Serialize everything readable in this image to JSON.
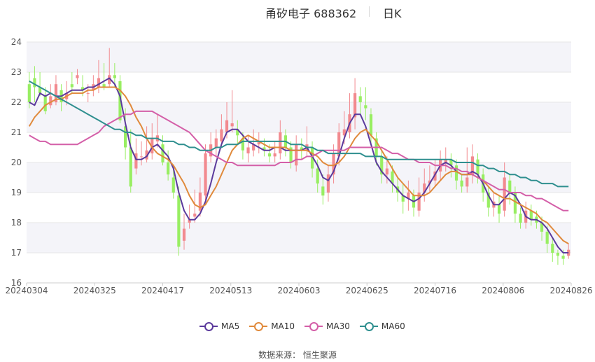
{
  "header": {
    "stock_name": "甬矽电子 688362",
    "period": "日K"
  },
  "chart_data": {
    "type": "candlestick",
    "y_axis": {
      "min": 16,
      "max": 24,
      "ticks": [
        16,
        17,
        18,
        19,
        20,
        21,
        22,
        23,
        24
      ],
      "grid": true
    },
    "x_axis": {
      "tick_labels": [
        "20240304",
        "20240325",
        "20240417",
        "20240513",
        "20240603",
        "20240625",
        "20240716",
        "20240806",
        "20240826"
      ]
    },
    "colors": {
      "up": "#f28a8f",
      "down": "#98ee62",
      "MA5": "#5b3a9c",
      "MA10": "#e08a3c",
      "MA30": "#d45fa8",
      "MA60": "#2f8f8f",
      "band": "#f4f4f9",
      "grid": "#e6e6e6"
    },
    "candles": [
      [
        22.6,
        22.0,
        23.0,
        21.8
      ],
      [
        22.8,
        22.5,
        23.2,
        22.0
      ],
      [
        22.5,
        22.3,
        23.0,
        22.2
      ],
      [
        22.2,
        21.7,
        22.5,
        21.6
      ],
      [
        21.9,
        22.2,
        22.6,
        21.8
      ],
      [
        22.0,
        22.6,
        22.9,
        21.9
      ],
      [
        22.4,
        22.0,
        22.6,
        21.7
      ],
      [
        22.1,
        22.3,
        22.7,
        21.9
      ],
      [
        22.6,
        22.5,
        23.0,
        22.3
      ],
      [
        22.8,
        22.9,
        23.1,
        22.6
      ],
      [
        22.5,
        22.4,
        22.9,
        22.2
      ],
      [
        22.3,
        22.3,
        22.6,
        22.0
      ],
      [
        22.4,
        22.6,
        22.9,
        22.2
      ],
      [
        22.5,
        22.8,
        23.4,
        22.3
      ],
      [
        22.6,
        22.5,
        23.3,
        22.4
      ],
      [
        22.6,
        22.9,
        23.8,
        22.5
      ],
      [
        22.9,
        22.8,
        23.3,
        22.5
      ],
      [
        22.7,
        21.4,
        22.9,
        21.3
      ],
      [
        21.2,
        20.5,
        21.8,
        20.1
      ],
      [
        20.5,
        19.2,
        21.1,
        19.0
      ],
      [
        19.8,
        20.3,
        20.8,
        19.6
      ],
      [
        20.2,
        20.2,
        20.7,
        19.9
      ],
      [
        20.1,
        20.4,
        21.2,
        20.0
      ],
      [
        20.3,
        20.8,
        21.3,
        20.1
      ],
      [
        20.7,
        20.9,
        21.6,
        20.5
      ],
      [
        20.6,
        20.0,
        20.9,
        19.9
      ],
      [
        20.0,
        19.6,
        20.4,
        19.4
      ],
      [
        19.5,
        19.0,
        19.8,
        18.8
      ],
      [
        18.9,
        17.2,
        19.2,
        16.9
      ],
      [
        17.4,
        17.8,
        18.3,
        17.1
      ],
      [
        18.0,
        18.1,
        18.6,
        17.8
      ],
      [
        18.2,
        18.3,
        19.1,
        18.0
      ],
      [
        18.4,
        19.0,
        19.5,
        18.2
      ],
      [
        18.9,
        20.3,
        20.6,
        18.7
      ],
      [
        20.2,
        20.6,
        21.0,
        20.0
      ],
      [
        20.5,
        20.8,
        21.1,
        20.2
      ],
      [
        20.7,
        21.1,
        21.6,
        20.5
      ],
      [
        21.0,
        21.4,
        22.0,
        20.8
      ],
      [
        21.2,
        21.3,
        22.4,
        21.0
      ],
      [
        21.1,
        20.9,
        21.4,
        20.6
      ],
      [
        20.8,
        20.4,
        21.0,
        20.1
      ],
      [
        20.3,
        20.5,
        20.9,
        20.0
      ],
      [
        20.4,
        20.6,
        21.1,
        20.2
      ],
      [
        20.6,
        20.7,
        21.0,
        20.3
      ],
      [
        20.5,
        20.4,
        20.8,
        20.2
      ],
      [
        20.3,
        20.2,
        20.6,
        20.0
      ],
      [
        20.2,
        20.3,
        20.7,
        20.0
      ],
      [
        20.3,
        21.0,
        21.4,
        20.1
      ],
      [
        20.9,
        20.5,
        21.1,
        20.2
      ],
      [
        20.5,
        20.0,
        20.7,
        19.8
      ],
      [
        19.9,
        20.6,
        20.9,
        19.7
      ],
      [
        20.5,
        20.4,
        20.8,
        20.1
      ],
      [
        20.4,
        20.6,
        21.2,
        20.2
      ],
      [
        20.5,
        19.8,
        20.7,
        19.5
      ],
      [
        19.8,
        19.3,
        20.1,
        19.0
      ],
      [
        19.2,
        18.9,
        19.6,
        18.6
      ],
      [
        19.0,
        19.6,
        19.9,
        18.7
      ],
      [
        19.6,
        20.3,
        20.6,
        19.3
      ],
      [
        20.2,
        21.0,
        21.3,
        19.9
      ],
      [
        20.9,
        21.1,
        21.7,
        20.6
      ],
      [
        21.0,
        21.6,
        22.3,
        20.8
      ],
      [
        21.5,
        22.3,
        22.8,
        21.1
      ],
      [
        22.2,
        22.0,
        22.5,
        21.6
      ],
      [
        21.9,
        21.8,
        22.5,
        21.4
      ],
      [
        21.6,
        20.9,
        21.8,
        20.6
      ],
      [
        20.8,
        20.2,
        21.0,
        19.9
      ],
      [
        20.2,
        19.6,
        20.4,
        19.3
      ],
      [
        19.6,
        19.8,
        20.2,
        19.3
      ],
      [
        19.7,
        19.3,
        19.9,
        19.0
      ],
      [
        19.2,
        19.0,
        19.5,
        18.7
      ],
      [
        18.9,
        18.7,
        19.3,
        18.3
      ],
      [
        18.8,
        19.0,
        19.4,
        18.4
      ],
      [
        18.9,
        18.5,
        19.1,
        18.2
      ],
      [
        18.4,
        19.0,
        19.5,
        18.2
      ],
      [
        19.0,
        19.3,
        19.8,
        18.7
      ],
      [
        19.3,
        19.4,
        19.9,
        19.0
      ],
      [
        19.4,
        19.7,
        20.1,
        19.2
      ],
      [
        19.7,
        20.1,
        20.4,
        19.4
      ],
      [
        20.0,
        20.1,
        20.5,
        19.7
      ],
      [
        20.1,
        19.9,
        20.3,
        19.5
      ],
      [
        19.9,
        19.4,
        20.1,
        19.1
      ],
      [
        19.4,
        19.2,
        19.6,
        19.0
      ],
      [
        19.2,
        19.5,
        20.5,
        19.0
      ],
      [
        19.6,
        20.2,
        20.6,
        19.3
      ],
      [
        20.1,
        19.6,
        20.3,
        19.3
      ],
      [
        19.6,
        19.0,
        19.8,
        18.7
      ],
      [
        19.0,
        18.5,
        19.2,
        18.2
      ],
      [
        18.5,
        18.7,
        19.0,
        18.2
      ],
      [
        18.6,
        18.3,
        18.9,
        18.0
      ],
      [
        18.4,
        19.5,
        20.0,
        18.2
      ],
      [
        19.4,
        19.0,
        19.6,
        18.6
      ],
      [
        19.0,
        18.3,
        19.2,
        18.0
      ],
      [
        18.3,
        18.0,
        18.5,
        17.8
      ],
      [
        18.0,
        18.4,
        18.7,
        17.8
      ],
      [
        18.4,
        18.1,
        18.6,
        17.9
      ],
      [
        18.2,
        18.0,
        18.4,
        17.8
      ],
      [
        18.0,
        17.7,
        18.2,
        17.4
      ],
      [
        17.7,
        17.3,
        17.9,
        17.0
      ],
      [
        17.3,
        17.0,
        17.5,
        16.7
      ],
      [
        17.0,
        16.9,
        17.1,
        16.6
      ],
      [
        16.9,
        16.8,
        17.1,
        16.6
      ],
      [
        16.9,
        17.1,
        17.3,
        16.8
      ]
    ],
    "series": [
      {
        "name": "MA5",
        "values": [
          22.0,
          21.9,
          22.3,
          22.2,
          22.3,
          22.2,
          22.2,
          22.3,
          22.4,
          22.4,
          22.4,
          22.5,
          22.5,
          22.6,
          22.7,
          22.8,
          22.6,
          22.2,
          21.3,
          20.5,
          20.1,
          20.1,
          20.2,
          20.5,
          20.6,
          20.4,
          20.2,
          19.8,
          19.0,
          18.4,
          18.1,
          18.1,
          18.3,
          18.7,
          19.3,
          20.0,
          20.6,
          21.0,
          21.1,
          21.1,
          20.9,
          20.7,
          20.6,
          20.5,
          20.4,
          20.4,
          20.5,
          20.5,
          20.4,
          20.4,
          20.4,
          20.4,
          20.5,
          20.2,
          19.9,
          19.5,
          19.4,
          19.7,
          20.2,
          20.8,
          21.3,
          21.6,
          21.6,
          21.2,
          20.6,
          20.0,
          19.7,
          19.5,
          19.3,
          19.1,
          18.9,
          18.8,
          18.7,
          18.8,
          19.0,
          19.3,
          19.6,
          19.9,
          20.0,
          19.9,
          19.7,
          19.6,
          19.6,
          19.7,
          19.6,
          19.3,
          18.9,
          18.6,
          18.6,
          18.8,
          19.0,
          18.9,
          18.6,
          18.2,
          18.1,
          18.1,
          18.0,
          17.8,
          17.5,
          17.2,
          17.0,
          17.0
        ]
      },
      {
        "name": "MA10",
        "values": [
          21.2,
          21.5,
          21.7,
          21.9,
          22.0,
          22.1,
          22.1,
          22.2,
          22.3,
          22.3,
          22.3,
          22.4,
          22.4,
          22.5,
          22.5,
          22.5,
          22.5,
          22.4,
          22.2,
          21.9,
          21.5,
          21.2,
          20.8,
          20.5,
          20.3,
          20.2,
          20.1,
          19.9,
          19.6,
          19.3,
          18.9,
          18.6,
          18.5,
          18.6,
          18.9,
          19.2,
          19.6,
          20.0,
          20.4,
          20.6,
          20.8,
          20.9,
          20.8,
          20.7,
          20.6,
          20.5,
          20.5,
          20.5,
          20.5,
          20.4,
          20.4,
          20.4,
          20.4,
          20.3,
          20.2,
          20.0,
          19.9,
          19.9,
          20.0,
          20.2,
          20.5,
          20.8,
          21.0,
          21.1,
          20.9,
          20.7,
          20.4,
          20.1,
          19.8,
          19.5,
          19.3,
          19.1,
          18.9,
          18.9,
          18.9,
          19.0,
          19.2,
          19.4,
          19.6,
          19.7,
          19.7,
          19.6,
          19.6,
          19.6,
          19.5,
          19.4,
          19.2,
          19.0,
          18.9,
          18.8,
          18.8,
          18.7,
          18.6,
          18.5,
          18.4,
          18.3,
          18.1,
          18.0,
          17.8,
          17.6,
          17.4,
          17.3
        ]
      },
      {
        "name": "MA30",
        "values": [
          20.9,
          20.8,
          20.7,
          20.7,
          20.6,
          20.6,
          20.6,
          20.6,
          20.6,
          20.6,
          20.7,
          20.8,
          20.9,
          21.0,
          21.2,
          21.3,
          21.4,
          21.5,
          21.6,
          21.6,
          21.7,
          21.7,
          21.7,
          21.7,
          21.6,
          21.5,
          21.4,
          21.3,
          21.2,
          21.1,
          21.0,
          20.8,
          20.6,
          20.4,
          20.3,
          20.2,
          20.1,
          20.0,
          20.0,
          19.9,
          19.9,
          19.9,
          19.9,
          19.9,
          19.9,
          19.9,
          19.9,
          20.0,
          20.0,
          20.0,
          20.1,
          20.1,
          20.2,
          20.2,
          20.3,
          20.4,
          20.4,
          20.4,
          20.4,
          20.4,
          20.5,
          20.5,
          20.5,
          20.5,
          20.5,
          20.5,
          20.5,
          20.4,
          20.3,
          20.3,
          20.2,
          20.1,
          20.1,
          20.0,
          20.0,
          20.0,
          19.9,
          19.9,
          19.9,
          19.8,
          19.8,
          19.7,
          19.7,
          19.6,
          19.5,
          19.4,
          19.3,
          19.2,
          19.1,
          19.1,
          19.0,
          19.0,
          19.0,
          18.9,
          18.9,
          18.8,
          18.8,
          18.7,
          18.6,
          18.5,
          18.4,
          18.4
        ]
      },
      {
        "name": "MA60",
        "values": [
          22.7,
          22.6,
          22.5,
          22.4,
          22.3,
          22.2,
          22.1,
          22.0,
          21.9,
          21.8,
          21.7,
          21.6,
          21.5,
          21.4,
          21.3,
          21.2,
          21.1,
          21.1,
          21.0,
          21.0,
          20.9,
          20.9,
          20.8,
          20.8,
          20.8,
          20.7,
          20.7,
          20.7,
          20.6,
          20.6,
          20.5,
          20.5,
          20.4,
          20.4,
          20.4,
          20.5,
          20.5,
          20.6,
          20.6,
          20.6,
          20.7,
          20.7,
          20.7,
          20.7,
          20.7,
          20.7,
          20.7,
          20.7,
          20.7,
          20.6,
          20.6,
          20.6,
          20.5,
          20.5,
          20.4,
          20.4,
          20.3,
          20.3,
          20.3,
          20.3,
          20.3,
          20.3,
          20.3,
          20.2,
          20.2,
          20.2,
          20.2,
          20.1,
          20.1,
          20.1,
          20.1,
          20.1,
          20.1,
          20.1,
          20.1,
          20.1,
          20.1,
          20.1,
          20.1,
          20.1,
          20.0,
          20.0,
          20.0,
          20.0,
          19.9,
          19.9,
          19.8,
          19.8,
          19.7,
          19.7,
          19.6,
          19.6,
          19.5,
          19.5,
          19.4,
          19.4,
          19.3,
          19.3,
          19.3,
          19.2,
          19.2,
          19.2
        ]
      }
    ]
  },
  "legend": [
    "MA5",
    "MA10",
    "MA30",
    "MA60"
  ],
  "source": "数据来源： 恒生聚源"
}
